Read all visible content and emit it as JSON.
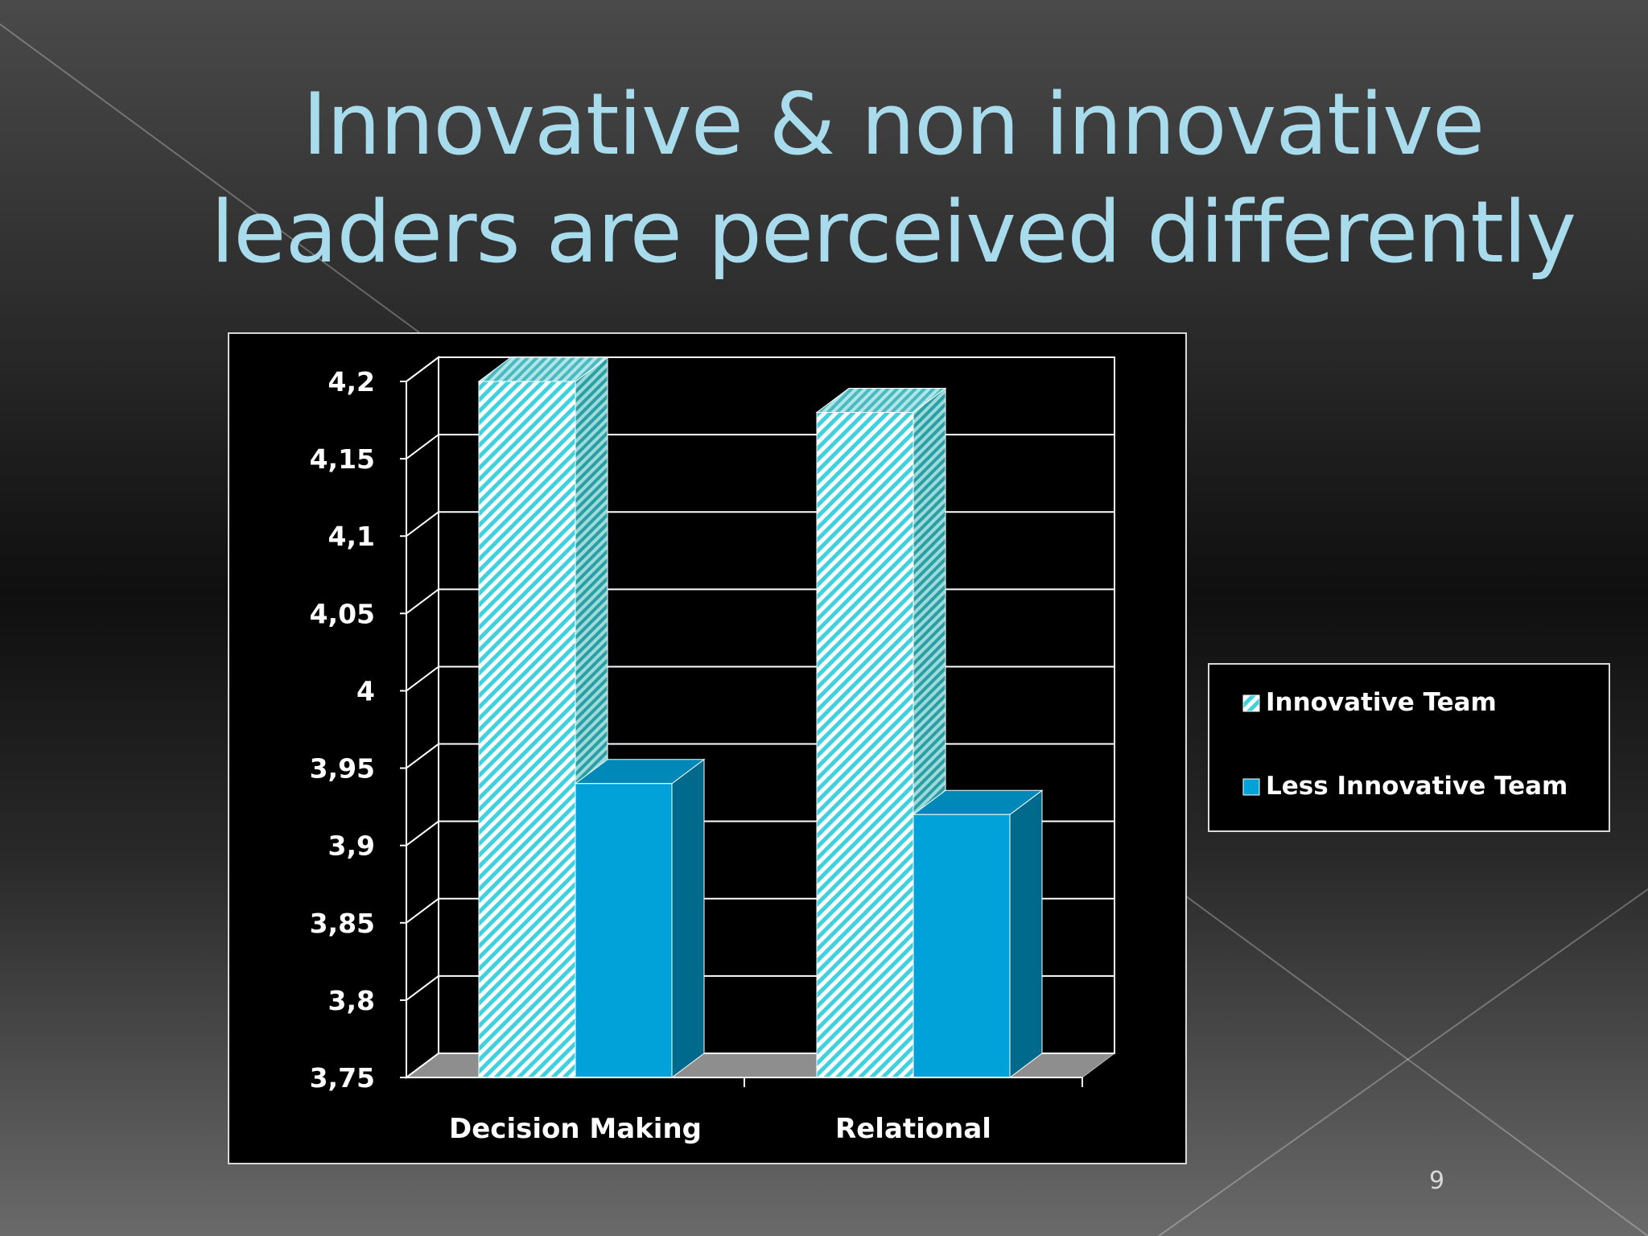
{
  "slide": {
    "title_line1": "Innovative & non innovative",
    "title_line2": "leaders are perceived differently",
    "page_number": "9"
  },
  "colors": {
    "title": "#a8dcec",
    "innovative_team": "#6fe0e8",
    "less_innovative_team": "#00a3d9"
  },
  "chart_data": {
    "type": "bar",
    "title": "",
    "xlabel": "",
    "ylabel": "",
    "categories": [
      "Decision Making",
      "Relational"
    ],
    "series": [
      {
        "name": "Innovative Team",
        "values": [
          4.2,
          4.18
        ]
      },
      {
        "name": "Less Innovative Team",
        "values": [
          3.94,
          3.92
        ]
      }
    ],
    "ylim": [
      3.75,
      4.2
    ],
    "yticks": [
      "4,2",
      "4,15",
      "4,1",
      "4,05",
      "4",
      "3,95",
      "3,9",
      "3,85",
      "3,8",
      "3,75"
    ],
    "grid": true,
    "legend": "right",
    "style": "3d-clustered-column"
  }
}
